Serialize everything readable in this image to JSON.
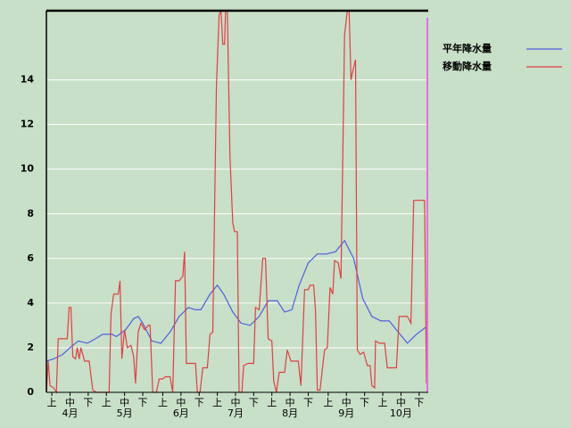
{
  "chart_data": {
    "type": "line",
    "xlim": [
      0,
      210
    ],
    "ylim": [
      0,
      17.1
    ],
    "yticks": [
      0,
      2,
      4,
      6,
      8,
      10,
      12,
      14
    ],
    "xticks": [
      {
        "value": 3,
        "label": "上"
      },
      {
        "value": 13,
        "label": "中"
      },
      {
        "value": 23,
        "label": "下"
      },
      {
        "value": 33,
        "label": "上"
      },
      {
        "value": 43,
        "label": "中"
      },
      {
        "value": 53,
        "label": "下"
      },
      {
        "value": 64,
        "label": "上"
      },
      {
        "value": 74,
        "label": "中"
      },
      {
        "value": 84,
        "label": "下"
      },
      {
        "value": 94,
        "label": "上"
      },
      {
        "value": 104,
        "label": "中"
      },
      {
        "value": 114,
        "label": "下"
      },
      {
        "value": 124,
        "label": "上"
      },
      {
        "value": 134,
        "label": "中"
      },
      {
        "value": 144,
        "label": "下"
      },
      {
        "value": 155,
        "label": "上"
      },
      {
        "value": 165,
        "label": "中"
      },
      {
        "value": 175,
        "label": "下"
      },
      {
        "value": 185,
        "label": "上"
      },
      {
        "value": 195,
        "label": "中"
      },
      {
        "value": 205,
        "label": "下"
      }
    ],
    "month_ticks": [
      {
        "value": 13,
        "label": "4月"
      },
      {
        "value": 43,
        "label": "5月"
      },
      {
        "value": 74,
        "label": "6月"
      },
      {
        "value": 104,
        "label": "7月"
      },
      {
        "value": 134,
        "label": "8月"
      },
      {
        "value": 165,
        "label": "9月"
      },
      {
        "value": 195,
        "label": "10月"
      }
    ],
    "grid": true,
    "current_line": {
      "x": 209.5,
      "color": "#e070e0"
    },
    "series": [
      {
        "name": "平年降水量",
        "color": "#4f5fe0",
        "x": [
          0,
          4,
          9,
          13,
          17.5,
          22.5,
          27,
          31,
          36,
          38.5,
          43.5,
          48,
          50.5,
          53,
          58,
          63,
          68,
          73,
          78,
          82,
          85,
          90,
          94,
          97.5,
          102.5,
          107,
          112,
          117,
          122,
          127,
          131,
          135,
          139,
          144,
          149,
          154,
          159,
          164,
          169,
          174,
          179,
          184,
          188.5,
          193.5,
          198.5,
          203.5,
          210
        ],
        "values": [
          1.4,
          1.5,
          1.7,
          2.0,
          2.3,
          2.2,
          2.4,
          2.6,
          2.6,
          2.5,
          2.8,
          3.3,
          3.4,
          3.1,
          2.3,
          2.2,
          2.7,
          3.4,
          3.8,
          3.7,
          3.7,
          4.4,
          4.8,
          4.4,
          3.6,
          3.1,
          3.0,
          3.4,
          4.1,
          4.1,
          3.6,
          3.7,
          4.8,
          5.8,
          6.2,
          6.2,
          6.3,
          6.8,
          6.0,
          4.2,
          3.4,
          3.2,
          3.2,
          2.7,
          2.2,
          2.6,
          3.0
        ]
      },
      {
        "name": "移動降水量",
        "color": "#e04040",
        "x": [
          0,
          1,
          2,
          4,
          5.5,
          6.5,
          11.5,
          12.5,
          13.5,
          14.5,
          16,
          17,
          18,
          19,
          21,
          23.5,
          25.5,
          27.5,
          34.5,
          35.5,
          37,
          39.5,
          40.5,
          41.5,
          43,
          44.5,
          46.5,
          48,
          49,
          50.5,
          52,
          54,
          56,
          57,
          58.5,
          60.5,
          62,
          64,
          65.5,
          68,
          69.5,
          71,
          73,
          75,
          76,
          77,
          80,
          82,
          83,
          84.5,
          86,
          88.5,
          90,
          91.5,
          93.5,
          95,
          96,
          97,
          98,
          98.5,
          99.5,
          101,
          102.5,
          103.5,
          105,
          106,
          107.5,
          108.5,
          111,
          114,
          115,
          117,
          119,
          120.5,
          122,
          124,
          125,
          126.5,
          128,
          131,
          132.5,
          134.5,
          138.5,
          140,
          142,
          144,
          145,
          147,
          148,
          149,
          150.5,
          153,
          154.5,
          156,
          157.5,
          158.5,
          160.5,
          162,
          164,
          165.5,
          166.5,
          167.5,
          168.5,
          170,
          171,
          172.5,
          174.5,
          176.5,
          178,
          179,
          180.5,
          181,
          183,
          186,
          187.5,
          190,
          192.5,
          194,
          198.5,
          200.5,
          202,
          207,
          208,
          209
        ],
        "values": [
          0,
          1.4,
          0.3,
          0.2,
          0,
          2.4,
          2.4,
          3.8,
          3.8,
          1.6,
          1.5,
          2.0,
          1.5,
          2.0,
          1.4,
          1.4,
          0.1,
          0,
          0,
          3.5,
          4.4,
          4.4,
          5.0,
          1.5,
          2.8,
          2.0,
          2.1,
          1.6,
          0.4,
          2.7,
          3.1,
          2.8,
          3.0,
          3.0,
          0,
          0,
          0.6,
          0.6,
          0.7,
          0.7,
          0,
          5.0,
          5.0,
          5.2,
          6.3,
          1.3,
          1.3,
          1.3,
          0,
          0,
          1.1,
          1.1,
          2.6,
          2.7,
          13.8,
          16.9,
          17.1,
          15.6,
          15.6,
          17.1,
          17.1,
          10.5,
          7.6,
          7.2,
          7.2,
          0,
          0,
          1.2,
          1.3,
          1.3,
          3.8,
          3.7,
          6.0,
          6.0,
          2.4,
          2.3,
          0.5,
          0,
          0.9,
          0.9,
          1.9,
          1.4,
          1.4,
          0.3,
          4.6,
          4.6,
          4.8,
          4.8,
          3.7,
          0.1,
          0.1,
          1.9,
          2.0,
          4.7,
          4.4,
          5.9,
          5.8,
          5.1,
          16.0,
          17.1,
          17.1,
          14.0,
          14.4,
          14.9,
          1.9,
          1.7,
          1.8,
          1.2,
          1.2,
          0.3,
          0.2,
          2.3,
          2.2,
          2.2,
          1.1,
          1.1,
          1.1,
          3.4,
          3.4,
          3.1,
          8.6,
          8.6,
          8.6,
          0.4
        ]
      }
    ]
  }
}
